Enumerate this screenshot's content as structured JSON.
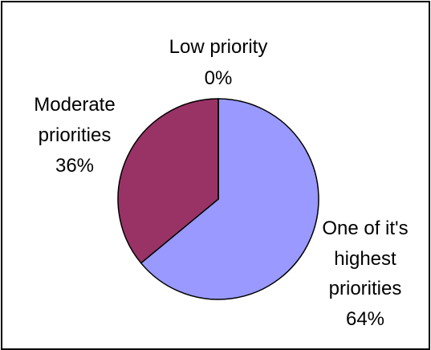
{
  "chart_data": {
    "type": "pie",
    "title": "",
    "slices": [
      {
        "label_lines": [
          "One of it's",
          "highest",
          "priorities"
        ],
        "percent_label": "64%",
        "value": 64,
        "color": "#9999ff"
      },
      {
        "label_lines": [
          "Moderate",
          "priorities"
        ],
        "percent_label": "36%",
        "value": 36,
        "color": "#993366"
      },
      {
        "label_lines": [
          "Low priority"
        ],
        "percent_label": "0%",
        "value": 0,
        "color": "#ffffcc"
      }
    ],
    "legend": "none",
    "border_color": "#000000"
  }
}
